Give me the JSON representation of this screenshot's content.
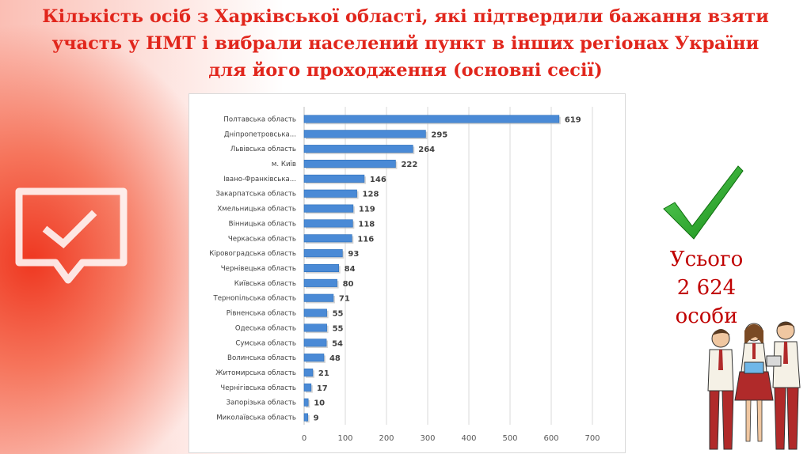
{
  "title": {
    "line1": "Кількість осіб з Харківської області, які підтвердили бажання взяти",
    "line2": "участь у НМТ і вибрали населений пункт в інших регіонах України",
    "line3": "для його проходження (основні сесії)"
  },
  "total": {
    "line1": "Усього",
    "line2": "2  624",
    "line3": "особи"
  },
  "colors": {
    "title": "#e1261c",
    "bar": "#4a8ad6",
    "total": "#c00000",
    "check": "#1f9a1f"
  },
  "icons": [
    "checkmark-icon",
    "feedback-message-icon",
    "students-illustration"
  ],
  "chart_data": {
    "type": "bar",
    "orientation": "horizontal",
    "categories": [
      "Полтавська область",
      "Дніпропетровська...",
      "Львівська область",
      "м. Київ",
      "Івано-Франківська...",
      "Закарпатська область",
      "Хмельницька область",
      "Вінницька область",
      "Черкаська область",
      "Кіровоградська область",
      "Чернівецька область",
      "Київська область",
      "Тернопільська область",
      "Рівненська область",
      "Одеська область",
      "Сумська область",
      "Волинська область",
      "Житомирська область",
      "Чернігівська область",
      "Запорізька область",
      "Миколаївська область"
    ],
    "values": [
      619,
      295,
      264,
      222,
      146,
      128,
      119,
      118,
      116,
      93,
      84,
      80,
      71,
      55,
      55,
      54,
      48,
      21,
      17,
      10,
      9
    ],
    "xlim": [
      0,
      700
    ],
    "xticks": [
      "0",
      "100",
      "200",
      "300",
      "400",
      "500",
      "600",
      "700"
    ],
    "grid": true,
    "data_labels": true
  }
}
